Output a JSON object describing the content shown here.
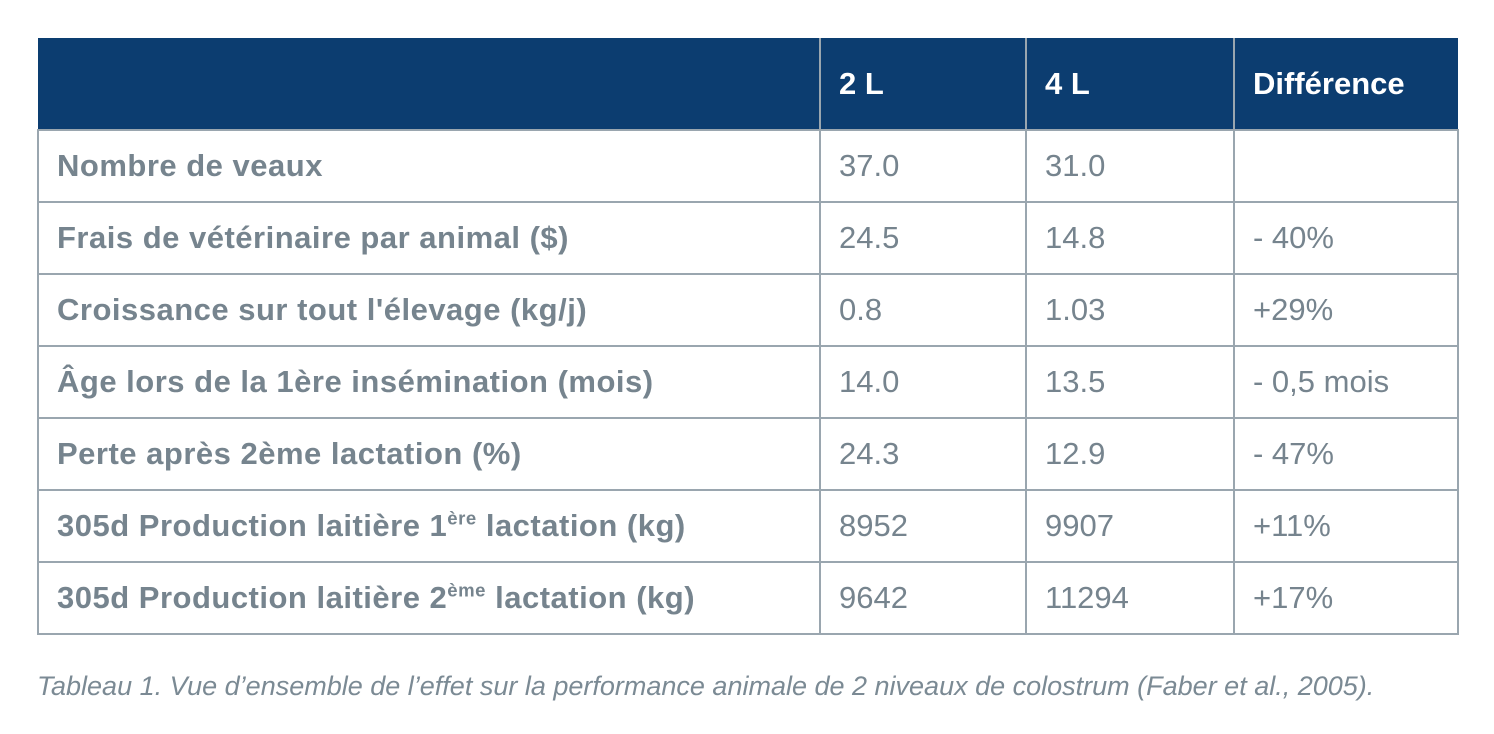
{
  "colors": {
    "header_bg": "#0c3d70",
    "header_text": "#ffffff",
    "body_text": "#76848e",
    "border": "#9aa6af"
  },
  "table": {
    "header": {
      "col_label": "",
      "col_2l": "2 L",
      "col_4l": "4 L",
      "col_diff": "Différence"
    },
    "rows": [
      {
        "label": "Nombre de veaux",
        "sup": "",
        "label_end": "",
        "v2l": "37.0",
        "v4l": "31.0",
        "diff": ""
      },
      {
        "label": "Frais de vétérinaire par animal ($)",
        "sup": "",
        "label_end": "",
        "v2l": "24.5",
        "v4l": "14.8",
        "diff": "- 40%"
      },
      {
        "label": "Croissance sur tout l'élevage (kg/j)",
        "sup": "",
        "label_end": "",
        "v2l": "0.8",
        "v4l": "1.03",
        "diff": "+29%"
      },
      {
        "label": "Âge lors de la 1ère insémination (mois)",
        "sup": "",
        "label_end": "",
        "v2l": "14.0",
        "v4l": "13.5",
        "diff": "- 0,5 mois"
      },
      {
        "label": "Perte après 2ème lactation (%)",
        "sup": "",
        "label_end": "",
        "v2l": "24.3",
        "v4l": "12.9",
        "diff": "- 47%"
      },
      {
        "label": "305d Production laitière 1",
        "sup": "ère",
        "label_end": " lactation (kg)",
        "v2l": "8952",
        "v4l": "9907",
        "diff": "+11%"
      },
      {
        "label": "305d Production laitière 2",
        "sup": "ème",
        "label_end": " lactation (kg)",
        "v2l": "9642",
        "v4l": "11294",
        "diff": "+17%"
      }
    ],
    "caption": "Tableau 1. Vue d’ensemble de l’effet sur la performance animale de 2 niveaux de colostrum (Faber et al., 2005)."
  }
}
